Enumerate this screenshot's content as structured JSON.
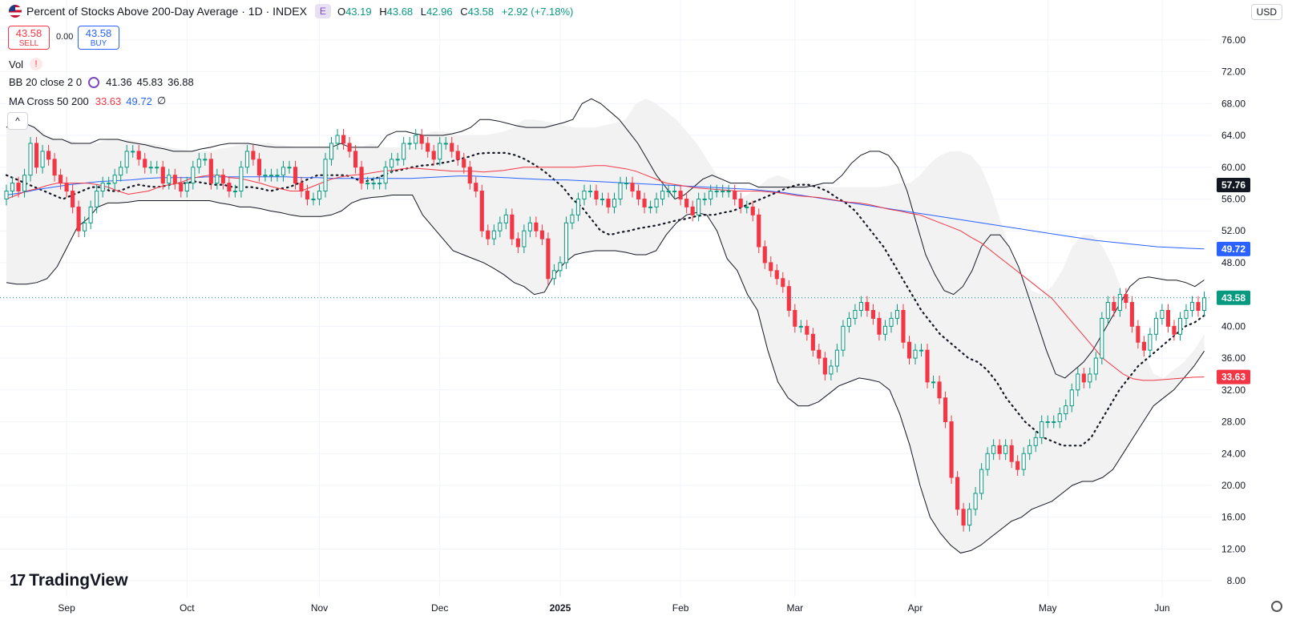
{
  "header": {
    "title": "Percent of Stocks Above 200-Day Average · 1D · INDEX",
    "badge": "E",
    "ohlc": {
      "o_label": "O",
      "o": "43.19",
      "h_label": "H",
      "h": "43.68",
      "l_label": "L",
      "l": "42.96",
      "c_label": "C",
      "c": "43.58",
      "change": "+2.92 (+7.18%)"
    },
    "sell_price": "43.58",
    "sell_label": "SELL",
    "spread": "0.00",
    "buy_price": "43.58",
    "buy_label": "BUY"
  },
  "legend": {
    "vol": "Vol",
    "bb_label": "BB 20 close 2 0",
    "bb_values": [
      "41.36",
      "45.83",
      "36.88"
    ],
    "ma_label": "MA Cross 50 200",
    "ma_values": [
      "33.63",
      "49.72"
    ],
    "ma_extra": "∅",
    "collapse": "^"
  },
  "currency": "USD",
  "branding": "TradingView",
  "colors": {
    "up": "#089981",
    "down": "#f23645",
    "ma50": "#f23645",
    "ma200": "#2962ff",
    "bb": "#131722",
    "band_fill": "#f2f2f2",
    "last_price": "#089981"
  },
  "chart_data": {
    "type": "candlestick",
    "y_ticks": [
      "76.00",
      "72.00",
      "68.00",
      "64.00",
      "60.00",
      "56.00",
      "52.00",
      "48.00",
      "40.00",
      "36.00",
      "32.00",
      "28.00",
      "24.00",
      "20.00",
      "16.00",
      "12.00",
      "8.00"
    ],
    "ylim": [
      6,
      78
    ],
    "x_labels": [
      "Sep",
      "Oct",
      "Nov",
      "Dec",
      "2025",
      "Feb",
      "Mar",
      "Apr",
      "May",
      "Jun"
    ],
    "x_label_index": [
      10,
      30,
      52,
      72,
      92,
      112,
      131,
      151,
      173,
      192
    ],
    "price_labels": [
      {
        "value": "57.76",
        "y": 57.76,
        "style": "dark"
      },
      {
        "value": "49.72",
        "y": 49.72,
        "style": "ma200"
      },
      {
        "value": "43.58",
        "y": 43.58,
        "style": "last"
      },
      {
        "value": "33.63",
        "y": 33.63,
        "style": "ma50"
      }
    ],
    "closes": [
      57,
      58,
      57,
      59,
      63,
      60,
      62,
      61,
      59,
      58,
      57,
      55,
      52,
      53,
      55,
      57,
      58,
      58,
      59,
      60,
      62,
      62,
      61,
      60,
      60,
      60,
      58,
      59,
      58,
      57,
      58,
      60,
      61,
      61,
      58,
      59,
      58,
      57,
      57,
      60,
      62,
      61,
      59,
      59,
      59,
      59,
      60,
      60,
      58,
      57,
      56,
      56,
      57,
      61,
      63,
      64,
      63,
      62,
      60,
      58,
      58,
      58,
      58,
      60,
      61,
      61,
      63,
      63,
      64,
      63,
      62,
      61,
      63,
      63,
      62,
      61,
      60,
      58,
      57,
      52,
      51,
      52,
      53,
      54,
      51,
      50,
      52,
      53,
      52,
      51,
      46,
      47,
      48,
      53,
      54,
      56,
      57,
      57,
      56,
      56,
      55,
      56,
      58,
      58,
      57,
      56,
      55,
      55,
      56,
      57,
      57,
      57,
      56,
      55,
      54,
      56,
      56,
      57,
      57,
      57,
      57,
      56,
      55,
      55,
      54,
      50,
      48,
      47,
      46,
      45,
      42,
      40,
      40,
      39,
      37,
      36,
      34,
      35,
      37,
      40,
      41,
      42,
      43,
      42,
      41,
      39,
      40,
      41,
      42,
      38,
      36,
      37,
      37,
      33,
      33,
      31,
      28,
      21,
      17,
      15,
      17,
      19,
      22,
      24,
      25,
      24,
      25,
      23,
      22,
      24,
      25,
      26,
      28,
      28,
      28,
      29,
      30,
      32,
      34,
      33,
      34,
      36,
      41,
      43,
      42,
      44,
      43,
      40,
      38,
      37,
      39,
      41,
      42,
      40,
      39,
      41,
      42,
      43,
      42,
      43.58
    ],
    "ma50": [
      56,
      56.5,
      57,
      57.3,
      57.7,
      58,
      58,
      58,
      58,
      57.8,
      57.5,
      57,
      56.6,
      56.8,
      57,
      57.5,
      57.8,
      58,
      58.5,
      58.8,
      59,
      59,
      58.7,
      58.6,
      58.3,
      58,
      57.6,
      57.3,
      57,
      57,
      57.5,
      58,
      58.5,
      58.8,
      59,
      59.1,
      59.3,
      59.5,
      59.6,
      59.8,
      59.9,
      59.8,
      59.7,
      59.6,
      59.5,
      59.5,
      59.5,
      59.4,
      59.5,
      59.6,
      59.8,
      60,
      60,
      60,
      60,
      60,
      60,
      60.1,
      60.2,
      60.2,
      60,
      59.8,
      59.5,
      59,
      58.5,
      58,
      57.8,
      57.6,
      57.4,
      57.3,
      57.2,
      57.1,
      57,
      57,
      57,
      56.9,
      56.8,
      56.6,
      56.4,
      56.3,
      56.2,
      56,
      55.8,
      55.6,
      55.5,
      55.3,
      55,
      54.7,
      54.5,
      54.2,
      54,
      53.5,
      53,
      52.5,
      52,
      51.2,
      50.5,
      49.5,
      48.5,
      47.5,
      46.5,
      45.5,
      44.5,
      43.5,
      42,
      40.5,
      39,
      37.5,
      36,
      35,
      34,
      33.4,
      33.2,
      33.2,
      33.3,
      33.4,
      33.5,
      33.6,
      33.63
    ],
    "ma50_start": 0,
    "ma200": [
      56.5,
      56.8,
      57.2,
      57.5,
      57.8,
      58,
      58.2,
      58.3,
      58.4,
      58.6,
      58.7,
      58.7,
      58.7,
      58.8,
      58.8,
      58.8,
      58.8,
      58.8,
      58.8,
      58.7,
      58.7,
      58.6,
      58.6,
      58.6,
      58.6,
      58.6,
      58.6,
      58.7,
      58.8,
      58.9,
      58.9,
      58.8,
      58.7,
      58.6,
      58.5,
      58.4,
      58.4,
      58.3,
      58.2,
      58.1,
      58,
      57.9,
      57.8,
      57.7,
      57.6,
      57.5,
      57.4,
      57.3,
      57.2,
      57,
      56.8,
      56.5,
      56.2,
      55.9,
      55.6,
      55.3,
      55,
      54.7,
      54.4,
      54.1,
      53.8,
      53.5,
      53.2,
      52.9,
      52.6,
      52.3,
      52,
      51.7,
      51.4,
      51.1,
      50.8,
      50.6,
      50.4,
      50.2,
      50,
      49.9,
      49.8,
      49.72
    ],
    "bb_upper": [
      65,
      66,
      65.5,
      65,
      64,
      63.5,
      63.5,
      63,
      63,
      63,
      63.5,
      63.5,
      63.5,
      63.2,
      63,
      62.8,
      62.5,
      62.3,
      62,
      62,
      62,
      62.3,
      62.5,
      62.8,
      63,
      63,
      63,
      62.8,
      62.6,
      62.5,
      62.5,
      62.5,
      62.5,
      62.5,
      62.5,
      62.5,
      63,
      62.5,
      62.5,
      62.5,
      62.5,
      64,
      64.5,
      64.5,
      64.2,
      64,
      64,
      64,
      64.2,
      64.5,
      65,
      66,
      66,
      65.8,
      65.5,
      65.2,
      65,
      65,
      65,
      65.3,
      65.6,
      66,
      68,
      68.6,
      68,
      67,
      66,
      64.5,
      63,
      61,
      59,
      57.5,
      56,
      56.5,
      57.5,
      58.5,
      59,
      58.5,
      58,
      58,
      58,
      57.5,
      57.5,
      57.5,
      57.5,
      57.5,
      57.5,
      57.7,
      58,
      58,
      59,
      60.5,
      61.5,
      62,
      62,
      61.5,
      60,
      57,
      53,
      49,
      46.5,
      44.5,
      44,
      45,
      47,
      50,
      51.5,
      51.5,
      50,
      47.5,
      44,
      40.5,
      37,
      34,
      33.5,
      34.5,
      35.5,
      37,
      39,
      41,
      43,
      45,
      46,
      46.2,
      46,
      45.8,
      45.8,
      45.5,
      45,
      45.83
    ],
    "bb_lower": [
      45.5,
      45.3,
      45.3,
      45.5,
      46,
      47.5,
      50,
      52.5,
      53.5,
      55,
      55.5,
      55.5,
      55.6,
      55.8,
      55.8,
      55.8,
      55.8,
      55.8,
      55.8,
      55.8,
      55.8,
      55.5,
      55.3,
      55,
      55,
      54.8,
      54.5,
      54.3,
      54,
      53.8,
      53.8,
      53.8,
      54,
      54.5,
      55.5,
      56,
      56.2,
      56.3,
      56.5,
      56.5,
      56.5,
      54,
      52.5,
      51,
      49.5,
      49,
      48.5,
      48,
      47.3,
      46.5,
      45.5,
      45,
      44,
      44.3,
      46.5,
      48,
      49,
      49.3,
      49.5,
      49.5,
      49.5,
      49.3,
      49,
      49,
      49.5,
      51.5,
      53,
      54,
      54.3,
      54,
      52,
      48.5,
      47,
      44,
      42,
      37,
      33,
      31,
      30,
      30,
      30.5,
      31.5,
      32.5,
      33,
      33.5,
      33.3,
      33,
      32,
      29,
      25,
      20,
      16,
      14,
      12.5,
      11.5,
      11.8,
      12.5,
      13.5,
      14.5,
      15.5,
      16,
      17,
      17.5,
      18,
      19,
      20,
      20.5,
      20.5,
      21,
      22,
      24,
      26,
      28,
      30,
      31,
      32,
      33.5,
      35,
      36.88
    ],
    "bb_mid": [
      59,
      58.5,
      58,
      57.5,
      57,
      56.5,
      56,
      56.5,
      57,
      57.5,
      57.5,
      57,
      57,
      57.5,
      57.8,
      57.6,
      57.5,
      57.7,
      58,
      58,
      58.2,
      58,
      57.8,
      57.8,
      57.5,
      57.5,
      57.5,
      57.3,
      57,
      57.3,
      57.5,
      58,
      58.5,
      59,
      59,
      59,
      59,
      58.5,
      58.2,
      58.5,
      59,
      59.5,
      59.7,
      60,
      60.2,
      60.3,
      60.5,
      60.7,
      61,
      61.3,
      61.7,
      61.8,
      61.8,
      61.8,
      61.5,
      61,
      60.3,
      59.5,
      58.5,
      57.5,
      56,
      55,
      53.5,
      52,
      51.5,
      51.8,
      52,
      52.3,
      52.5,
      52.7,
      53,
      53.3,
      53.5,
      53.8,
      54,
      54,
      54.3,
      54.5,
      55,
      55.5,
      56,
      56.5,
      57,
      57.5,
      57.8,
      57.8,
      57.5,
      57,
      56.2,
      55.5,
      54.5,
      53,
      51.5,
      50,
      48,
      46,
      44,
      42,
      40.5,
      39,
      38,
      37,
      36,
      35.5,
      34.5,
      33,
      31,
      29.5,
      28,
      27,
      26,
      25.5,
      25,
      25,
      25,
      26,
      28,
      30,
      32,
      33.5,
      35,
      36,
      37,
      38,
      39,
      40,
      40.5,
      41.36
    ]
  }
}
